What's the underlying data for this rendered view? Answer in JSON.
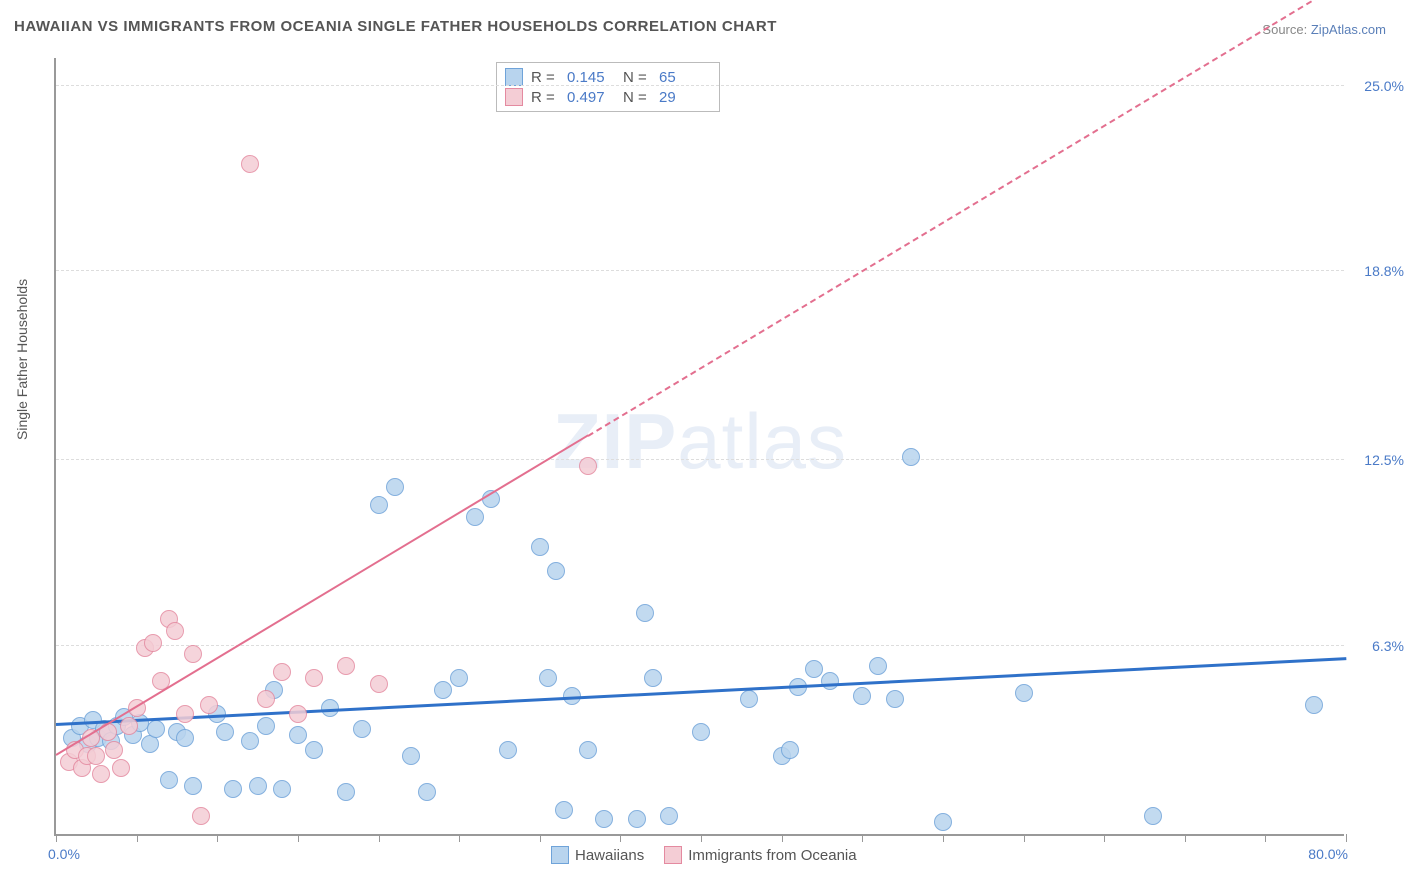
{
  "title": "HAWAIIAN VS IMMIGRANTS FROM OCEANIA SINGLE FATHER HOUSEHOLDS CORRELATION CHART",
  "source_label": "Source:",
  "source_value": "ZipAtlas.com",
  "ylabel": "Single Father Households",
  "watermark": {
    "prefix": "ZIP",
    "suffix": "atlas"
  },
  "chart": {
    "type": "scatter",
    "xlim": [
      0,
      80
    ],
    "ylim": [
      0,
      26
    ],
    "x_axis_min_label": "0.0%",
    "x_axis_max_label": "80.0%",
    "x_tick_step": 5,
    "y_gridlines": [
      6.3,
      12.5,
      18.8,
      25.0
    ],
    "y_tick_labels": [
      "6.3%",
      "12.5%",
      "18.8%",
      "25.0%"
    ],
    "background_color": "#ffffff",
    "grid_color": "#dddddd",
    "marker_radius": 9,
    "series": [
      {
        "name": "Hawaiians",
        "color_fill": "#b8d4ee",
        "color_stroke": "#6fa3d9",
        "R": "0.145",
        "N": "65",
        "trend": {
          "x1": 0,
          "y1": 3.6,
          "x2": 80,
          "y2": 5.8,
          "color": "#2f71c9",
          "width": 3,
          "dash": false
        },
        "points": [
          [
            1.0,
            3.2
          ],
          [
            1.5,
            3.6
          ],
          [
            2.0,
            3.0
          ],
          [
            2.3,
            3.8
          ],
          [
            2.6,
            3.2
          ],
          [
            3.0,
            3.5
          ],
          [
            3.4,
            3.1
          ],
          [
            3.8,
            3.6
          ],
          [
            4.2,
            3.9
          ],
          [
            4.8,
            3.3
          ],
          [
            5.2,
            3.7
          ],
          [
            5.8,
            3.0
          ],
          [
            6.2,
            3.5
          ],
          [
            7.0,
            1.8
          ],
          [
            7.5,
            3.4
          ],
          [
            8.0,
            3.2
          ],
          [
            8.5,
            1.6
          ],
          [
            10.0,
            4.0
          ],
          [
            10.5,
            3.4
          ],
          [
            11.0,
            1.5
          ],
          [
            12.0,
            3.1
          ],
          [
            12.5,
            1.6
          ],
          [
            13.0,
            3.6
          ],
          [
            13.5,
            4.8
          ],
          [
            14.0,
            1.5
          ],
          [
            15.0,
            3.3
          ],
          [
            16.0,
            2.8
          ],
          [
            17.0,
            4.2
          ],
          [
            18.0,
            1.4
          ],
          [
            19.0,
            3.5
          ],
          [
            20.0,
            11.0
          ],
          [
            21.0,
            11.6
          ],
          [
            22.0,
            2.6
          ],
          [
            23.0,
            1.4
          ],
          [
            24.0,
            4.8
          ],
          [
            25.0,
            5.2
          ],
          [
            26.0,
            10.6
          ],
          [
            27.0,
            11.2
          ],
          [
            28.0,
            2.8
          ],
          [
            30.0,
            9.6
          ],
          [
            30.5,
            5.2
          ],
          [
            31.0,
            8.8
          ],
          [
            31.5,
            0.8
          ],
          [
            32.0,
            4.6
          ],
          [
            33.0,
            2.8
          ],
          [
            34.0,
            0.5
          ],
          [
            36.0,
            0.5
          ],
          [
            36.5,
            7.4
          ],
          [
            37.0,
            5.2
          ],
          [
            38.0,
            0.6
          ],
          [
            40.0,
            3.4
          ],
          [
            43.0,
            4.5
          ],
          [
            45.0,
            2.6
          ],
          [
            46.0,
            4.9
          ],
          [
            47.0,
            5.5
          ],
          [
            48.0,
            5.1
          ],
          [
            50.0,
            4.6
          ],
          [
            51.0,
            5.6
          ],
          [
            52.0,
            4.5
          ],
          [
            53.0,
            12.6
          ],
          [
            55.0,
            0.4
          ],
          [
            60.0,
            4.7
          ],
          [
            68.0,
            0.6
          ],
          [
            78.0,
            4.3
          ],
          [
            45.5,
            2.8
          ]
        ]
      },
      {
        "name": "Immigrants from Oceania",
        "color_fill": "#f4cdd5",
        "color_stroke": "#e48aa0",
        "R": "0.497",
        "N": "29",
        "trend": {
          "x1": 0,
          "y1": 2.6,
          "x2": 80,
          "y2": 28.5,
          "color": "#e36f8f",
          "width": 2,
          "dash": true,
          "solid_until_x": 33
        },
        "points": [
          [
            0.8,
            2.4
          ],
          [
            1.2,
            2.8
          ],
          [
            1.6,
            2.2
          ],
          [
            1.9,
            2.6
          ],
          [
            2.2,
            3.2
          ],
          [
            2.5,
            2.6
          ],
          [
            2.8,
            2.0
          ],
          [
            3.2,
            3.4
          ],
          [
            3.6,
            2.8
          ],
          [
            4.0,
            2.2
          ],
          [
            4.5,
            3.6
          ],
          [
            5.0,
            4.2
          ],
          [
            5.5,
            6.2
          ],
          [
            6.0,
            6.4
          ],
          [
            6.5,
            5.1
          ],
          [
            7.0,
            7.2
          ],
          [
            7.4,
            6.8
          ],
          [
            8.0,
            4.0
          ],
          [
            8.5,
            6.0
          ],
          [
            9.0,
            0.6
          ],
          [
            9.5,
            4.3
          ],
          [
            12.0,
            22.4
          ],
          [
            13.0,
            4.5
          ],
          [
            14.0,
            5.4
          ],
          [
            15.0,
            4.0
          ],
          [
            16.0,
            5.2
          ],
          [
            18.0,
            5.6
          ],
          [
            20.0,
            5.0
          ],
          [
            33.0,
            12.3
          ]
        ]
      }
    ]
  },
  "stats_box": {
    "rows": [
      {
        "swatch_fill": "#b8d4ee",
        "swatch_stroke": "#6fa3d9",
        "r_label": "R  =",
        "r_value": "0.145",
        "n_label": "N  =",
        "n_value": "65"
      },
      {
        "swatch_fill": "#f4cdd5",
        "swatch_stroke": "#e48aa0",
        "r_label": "R  =",
        "r_value": "0.497",
        "n_label": "N  =",
        "n_value": "29"
      }
    ]
  },
  "bottom_legend": [
    {
      "swatch_fill": "#b8d4ee",
      "swatch_stroke": "#6fa3d9",
      "label": "Hawaiians"
    },
    {
      "swatch_fill": "#f4cdd5",
      "swatch_stroke": "#e48aa0",
      "label": "Immigrants from Oceania"
    }
  ]
}
